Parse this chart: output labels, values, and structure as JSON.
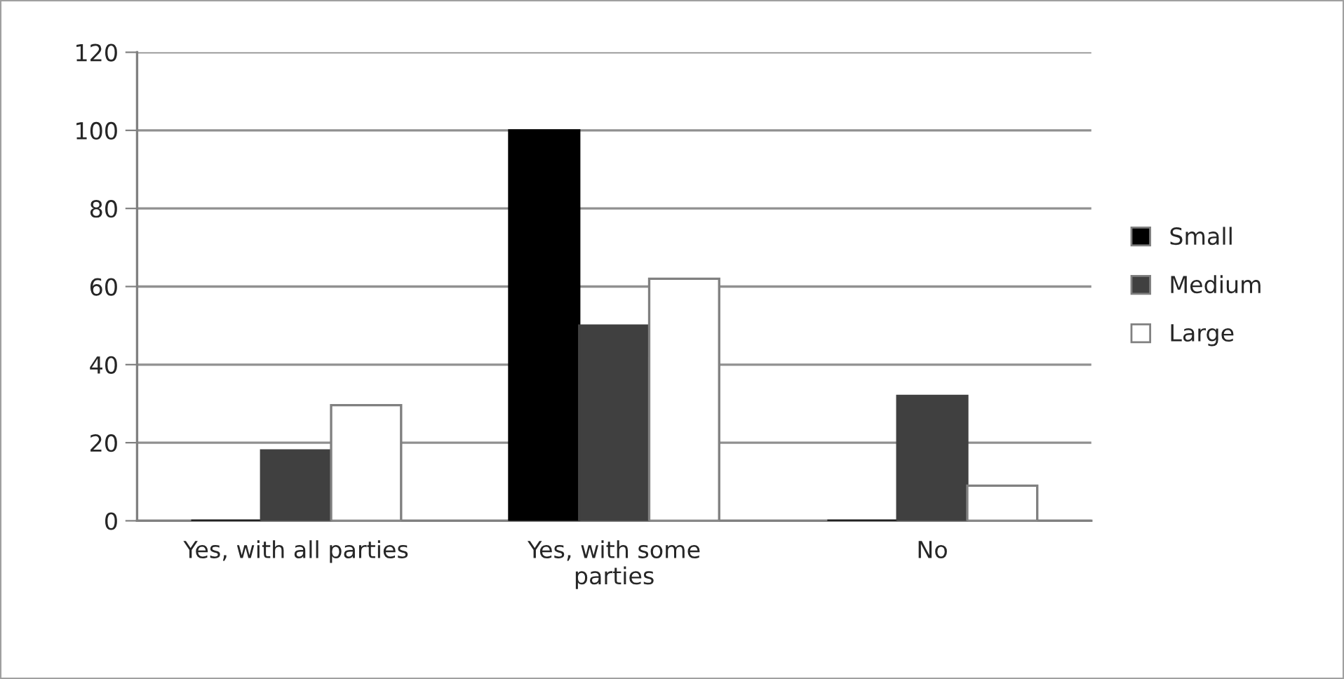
{
  "chart_data": {
    "type": "bar",
    "categories": [
      "Yes, with all parties",
      "Yes, with some\nparties",
      "No"
    ],
    "series": [
      {
        "name": "Small",
        "color": "#000000",
        "values": [
          0,
          100,
          0
        ]
      },
      {
        "name": "Medium",
        "color": "#404040",
        "values": [
          18,
          50,
          32
        ]
      },
      {
        "name": "Large",
        "color": "#ffffff",
        "values": [
          29.6,
          62,
          9
        ]
      }
    ],
    "ylim": [
      0,
      120
    ],
    "yticks": [
      0,
      20,
      40,
      60,
      80,
      100,
      120
    ],
    "grid": "y",
    "legend": "right"
  }
}
